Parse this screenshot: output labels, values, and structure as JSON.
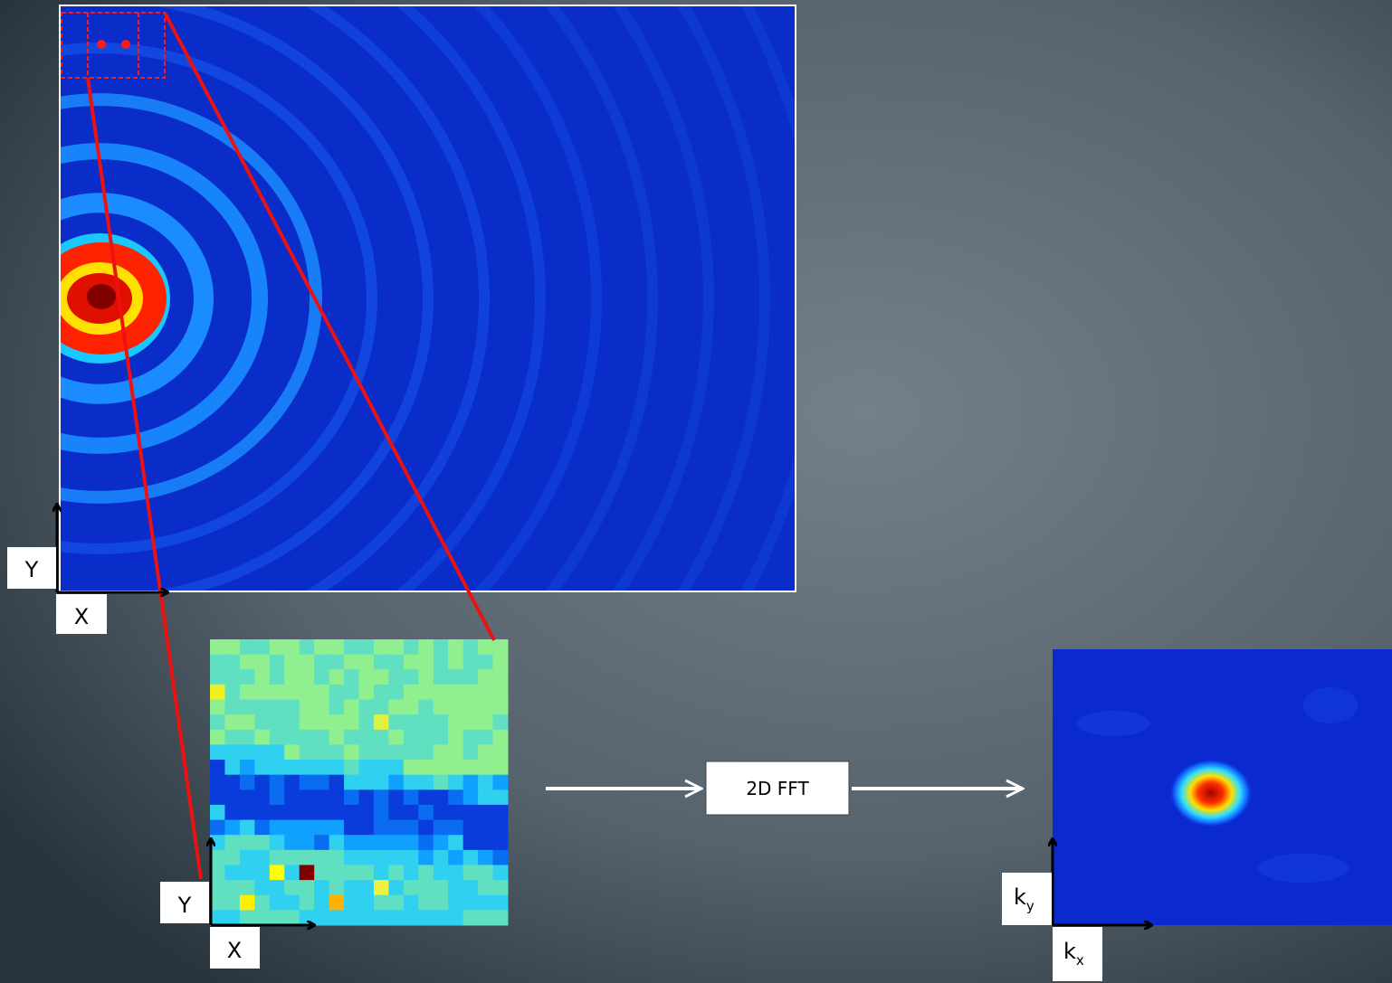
{
  "main_image": {
    "axis_labels": {
      "y": "Y",
      "x": "X"
    }
  },
  "zoom_image": {
    "axis_labels": {
      "y": "Y",
      "x": "X"
    }
  },
  "process": {
    "label": "2D FFT"
  },
  "fft_image": {
    "axis_labels": {
      "y": {
        "base": "k",
        "sub": "y"
      },
      "x": {
        "base": "k",
        "sub": "x"
      }
    }
  }
}
